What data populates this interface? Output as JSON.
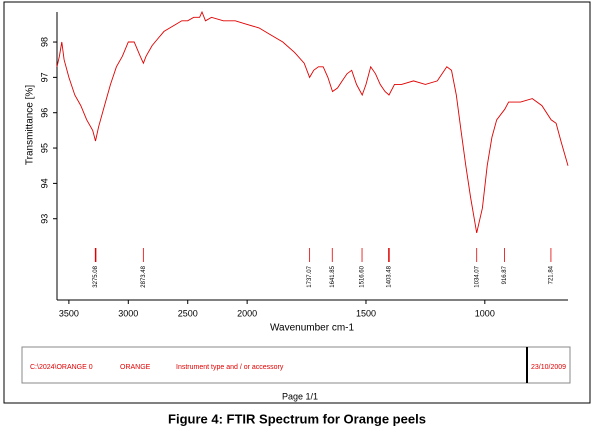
{
  "chart_data": {
    "type": "line",
    "xlabel": "Wavenumber cm-1",
    "ylabel": "Transmittance [%]",
    "color": "#e00000",
    "xlim": [
      3600,
      650
    ],
    "x_scale_break": 2000,
    "xticks": [
      3500,
      3000,
      2500,
      2000,
      1500,
      1000
    ],
    "ylim": [
      90.7,
      98.85
    ],
    "yticks": [
      93,
      94,
      95,
      96,
      97,
      98
    ],
    "x": [
      3600,
      3580,
      3560,
      3540,
      3500,
      3450,
      3400,
      3350,
      3300,
      3276,
      3250,
      3200,
      3150,
      3100,
      3050,
      3000,
      2950,
      2900,
      2873,
      2850,
      2800,
      2750,
      2700,
      2650,
      2600,
      2550,
      2500,
      2450,
      2400,
      2380,
      2350,
      2300,
      2200,
      2100,
      2000,
      1950,
      1900,
      1850,
      1800,
      1760,
      1737,
      1720,
      1700,
      1680,
      1660,
      1641,
      1620,
      1600,
      1580,
      1560,
      1540,
      1516,
      1500,
      1480,
      1460,
      1440,
      1420,
      1403,
      1380,
      1350,
      1300,
      1250,
      1200,
      1160,
      1140,
      1120,
      1100,
      1080,
      1060,
      1034,
      1010,
      990,
      970,
      950,
      916,
      900,
      850,
      800,
      760,
      721,
      700,
      680,
      650
    ],
    "values": [
      97.3,
      97.6,
      98.0,
      97.5,
      97.0,
      96.5,
      96.2,
      95.8,
      95.5,
      95.2,
      95.6,
      96.2,
      96.8,
      97.3,
      97.6,
      98.0,
      98.0,
      97.6,
      97.4,
      97.6,
      97.9,
      98.1,
      98.3,
      98.4,
      98.5,
      98.6,
      98.6,
      98.7,
      98.7,
      98.85,
      98.6,
      98.7,
      98.6,
      98.6,
      98.5,
      98.4,
      98.2,
      98.0,
      97.7,
      97.4,
      97.0,
      97.2,
      97.3,
      97.3,
      97.0,
      96.6,
      96.7,
      96.9,
      97.1,
      97.2,
      96.8,
      96.5,
      96.8,
      97.3,
      97.1,
      96.8,
      96.6,
      96.5,
      96.8,
      96.8,
      96.9,
      96.8,
      96.9,
      97.3,
      97.2,
      96.5,
      95.5,
      94.5,
      93.6,
      92.6,
      93.3,
      94.5,
      95.3,
      95.8,
      96.1,
      96.3,
      96.3,
      96.4,
      96.2,
      95.8,
      95.7,
      95.2,
      94.5
    ],
    "peaks": [
      3275.08,
      2873.48,
      1737.07,
      1641.85,
      {
        "value": 1516.6,
        "label": "1516.60"
      },
      1403.48,
      1034.07,
      916.87,
      721.84
    ],
    "footer": {
      "file": "C:\\2024\\ORANGE 0",
      "sample": "ORANGE",
      "instrument": "Instrument type and / or accessory",
      "date": "23/10/2009"
    },
    "page": "Page 1/1",
    "caption": "Figure 4: FTIR Spectrum for Orange peels"
  }
}
